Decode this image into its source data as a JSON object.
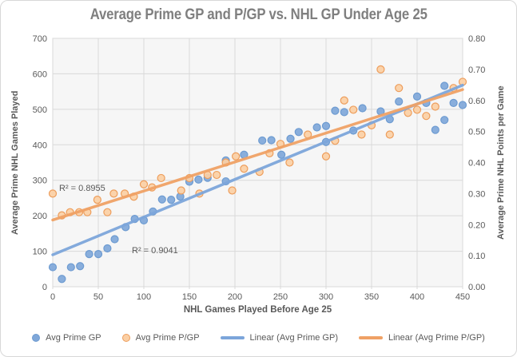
{
  "chart": {
    "title": "Average Prime GP and P/GP vs. NHL GP Under Age 25"
  },
  "chart_data": {
    "type": "scatter",
    "title": "Average Prime GP and P/GP vs. NHL GP Under Age 25",
    "grid": true,
    "legend_position": "bottom",
    "colors": {
      "plot_bg": "#F6F6F6",
      "gridline": "#D9D9D9",
      "text": "#595959",
      "title": "#7F7F7F",
      "blue_fill": "#7FA7D9",
      "blue_stroke": "#6D9BD1",
      "orange_fill": "#FBCFA4",
      "orange_stroke": "#ED9D5B",
      "blue_line": "#7CA5DA",
      "orange_line": "#EFA165"
    },
    "x_axis": {
      "label": "NHL Games Played Before Age 25",
      "min": 0,
      "max": 450,
      "ticks": [
        0,
        50,
        100,
        150,
        200,
        250,
        300,
        350,
        400,
        450
      ]
    },
    "y_left": {
      "label": "Average Prime NHL Games Played",
      "min": 0,
      "max": 700,
      "ticks": [
        0,
        100,
        200,
        300,
        400,
        500,
        600,
        700
      ]
    },
    "y_right": {
      "label": "Average Prime NHL Points per Game",
      "min": 0,
      "max": 0.8,
      "ticks": [
        "0.00",
        "0.10",
        "0.20",
        "0.30",
        "0.40",
        "0.50",
        "0.60",
        "0.70",
        "0.80"
      ]
    },
    "series": [
      {
        "name": "Avg Prime GP",
        "axis": "left",
        "fill": "#7FA7D9",
        "stroke": "#6D9BD1",
        "points": [
          [
            0,
            55
          ],
          [
            10,
            22
          ],
          [
            20,
            55
          ],
          [
            30,
            58
          ],
          [
            40,
            92
          ],
          [
            50,
            92
          ],
          [
            60,
            108
          ],
          [
            68,
            134
          ],
          [
            80,
            168
          ],
          [
            90,
            191
          ],
          [
            100,
            187
          ],
          [
            110,
            212
          ],
          [
            120,
            246
          ],
          [
            130,
            245
          ],
          [
            140,
            254
          ],
          [
            150,
            296
          ],
          [
            160,
            302
          ],
          [
            170,
            307
          ],
          [
            190,
            297
          ],
          [
            190,
            356
          ],
          [
            210,
            372
          ],
          [
            230,
            412
          ],
          [
            240,
            413
          ],
          [
            251,
            372
          ],
          [
            261,
            417
          ],
          [
            270,
            436
          ],
          [
            290,
            449
          ],
          [
            300,
            408
          ],
          [
            300,
            453
          ],
          [
            310,
            496
          ],
          [
            320,
            492
          ],
          [
            330,
            440
          ],
          [
            340,
            503
          ],
          [
            360,
            494
          ],
          [
            370,
            472
          ],
          [
            380,
            522
          ],
          [
            400,
            536
          ],
          [
            410,
            518
          ],
          [
            420,
            442
          ],
          [
            430,
            470
          ],
          [
            430,
            566
          ],
          [
            440,
            518
          ],
          [
            450,
            512
          ]
        ]
      },
      {
        "name": "Avg Prime P/GP",
        "axis": "right",
        "fill": "#FBCFA4",
        "stroke": "#ED9D5B",
        "points": [
          [
            0,
            0.3
          ],
          [
            10,
            0.23
          ],
          [
            19,
            0.24
          ],
          [
            29,
            0.24
          ],
          [
            38,
            0.24
          ],
          [
            49,
            0.28
          ],
          [
            60,
            0.24
          ],
          [
            67,
            0.3
          ],
          [
            79,
            0.3
          ],
          [
            89,
            0.29
          ],
          [
            100,
            0.33
          ],
          [
            109,
            0.32
          ],
          [
            119,
            0.35
          ],
          [
            141,
            0.31
          ],
          [
            150,
            0.35
          ],
          [
            161,
            0.3
          ],
          [
            170,
            0.36
          ],
          [
            180,
            0.36
          ],
          [
            190,
            0.4
          ],
          [
            197,
            0.31
          ],
          [
            201,
            0.42
          ],
          [
            210,
            0.38
          ],
          [
            227,
            0.37
          ],
          [
            238,
            0.43
          ],
          [
            250,
            0.46
          ],
          [
            260,
            0.4
          ],
          [
            280,
            0.49
          ],
          [
            300,
            0.42
          ],
          [
            310,
            0.47
          ],
          [
            320,
            0.6
          ],
          [
            330,
            0.57
          ],
          [
            339,
            0.49
          ],
          [
            350,
            0.52
          ],
          [
            360,
            0.7
          ],
          [
            370,
            0.49
          ],
          [
            380,
            0.64
          ],
          [
            390,
            0.56
          ],
          [
            400,
            0.57
          ],
          [
            410,
            0.55
          ],
          [
            420,
            0.58
          ],
          [
            440,
            0.64
          ],
          [
            450,
            0.66
          ]
        ]
      }
    ],
    "trendlines": [
      {
        "name": "Linear (Avg Prime GP)",
        "axis": "left",
        "color": "#7CA5DA",
        "from": [
          0,
          90
        ],
        "to": [
          450,
          568
        ],
        "r2": "R² = 0.9041"
      },
      {
        "name": "Linear (Avg Prime P/GP)",
        "axis": "right",
        "color": "#EFA165",
        "from": [
          0,
          0.215
        ],
        "to": [
          450,
          0.635
        ],
        "r2": "R² = 0.8955"
      }
    ],
    "annotations": [
      {
        "text": "R² = 0.8955",
        "for": "Linear (Avg Prime P/GP)"
      },
      {
        "text": "R² = 0.9041",
        "for": "Linear (Avg Prime GP)"
      }
    ],
    "legend": {
      "items": [
        {
          "label": "Avg Prime GP",
          "marker": "circle",
          "fill": "#7FA7D9",
          "stroke": "#6D9BD1"
        },
        {
          "label": "Avg Prime P/GP",
          "marker": "circle",
          "fill": "#FBCFA4",
          "stroke": "#ED9D5B"
        },
        {
          "label": "Linear (Avg Prime GP)",
          "marker": "line",
          "fill": "#7CA5DA",
          "stroke": "#7CA5DA"
        },
        {
          "label": "Linear (Avg Prime P/GP)",
          "marker": "line",
          "fill": "#EFA165",
          "stroke": "#EFA165"
        }
      ]
    }
  }
}
